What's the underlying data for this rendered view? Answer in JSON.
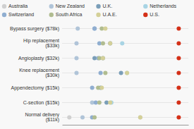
{
  "chart_data": {
    "type": "dot",
    "orientation": "horizontal",
    "categories": [
      "Bypass surgery ($78k)",
      "Hip replacement\n($33k)",
      "Angioplasty ($32k)",
      "Knee replacement\n($30k)",
      "Appendectomy ($15k)",
      "C-section ($15k)",
      "Normal delivery\n($11k)"
    ],
    "series": [
      {
        "name": "Australia",
        "color": "#d0d0d0",
        "values": [
          null,
          null,
          null,
          null,
          null,
          null,
          [
            0.06,
            0.65
          ]
        ]
      },
      {
        "name": "New Zealand",
        "color": "#b0c4d8",
        "values": [
          0.13,
          0.12,
          0.12,
          0.12,
          null,
          0.25,
          0.17
        ]
      },
      {
        "name": "U.K.",
        "color": "#7a9eb8",
        "values": [
          null,
          0.4,
          [
            0.27,
            0.34
          ],
          0.49,
          0.32,
          0.37,
          null
        ]
      },
      {
        "name": "Netherlands",
        "color": "#a8d4e4",
        "values": [
          null,
          0.5,
          null,
          0.54,
          null,
          0.41,
          null
        ]
      },
      {
        "name": "Switzerland",
        "color": "#90aed0",
        "values": [
          [
            0.27,
            0.27
          ],
          0.31,
          0.3,
          0.32,
          0.25,
          0.28,
          0.25
        ]
      },
      {
        "name": "South Africa",
        "color": "#b0bc90",
        "values": [
          0.33,
          0.34,
          0.31,
          0.36,
          0.3,
          0.31,
          0.27
        ]
      },
      {
        "name": "U.A.E.",
        "color": "#d4d098",
        "values": [
          0.36,
          0.4,
          0.34,
          0.54,
          0.33,
          0.4,
          0.65
        ]
      },
      {
        "name": "U.S.",
        "color": "#d43018",
        "values": [
          0.97,
          0.97,
          0.97,
          0.97,
          0.97,
          0.97,
          0.97
        ]
      }
    ],
    "xlim": [
      0,
      1.05
    ],
    "grid": true,
    "legend": "top",
    "tick_labels": "y"
  }
}
